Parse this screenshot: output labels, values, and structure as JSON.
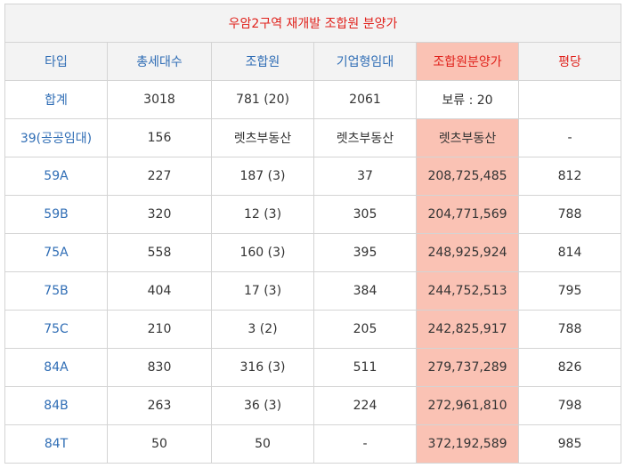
{
  "title": "우암2구역 재개발 조합원 분양가",
  "headers": [
    "타입",
    "총세대수",
    "조합원",
    "기업형임대",
    "조합원분양가",
    "평당"
  ],
  "rows": [
    [
      "합계",
      "3018",
      "781 (20)",
      "2061",
      "보류 : 20",
      ""
    ],
    [
      "39(공공임대)",
      "156",
      "렛츠부동산",
      "렛츠부동산",
      "렛츠부동산",
      "-"
    ],
    [
      "59A",
      "227",
      "187 (3)",
      "37",
      "208,725,485",
      "812"
    ],
    [
      "59B",
      "320",
      "12 (3)",
      "305",
      "204,771,569",
      "788"
    ],
    [
      "75A",
      "558",
      "160 (3)",
      "395",
      "248,925,924",
      "814"
    ],
    [
      "75B",
      "404",
      "17 (3)",
      "384",
      "244,752,513",
      "795"
    ],
    [
      "75C",
      "210",
      "3 (2)",
      "205",
      "242,825,917",
      "788"
    ],
    [
      "84A",
      "830",
      "316 (3)",
      "511",
      "279,737,289",
      "826"
    ],
    [
      "84B",
      "263",
      "36 (3)",
      "224",
      "272,961,810",
      "798"
    ],
    [
      "84T",
      "50",
      "50",
      "-",
      "372,192,589",
      "985"
    ]
  ],
  "colors": {
    "title": "#e0211b",
    "header_text": "#2f6db5",
    "highlight_bg": "#fac2b4",
    "header_bg": "#f3f3f3",
    "border": "#d4d4d4"
  }
}
